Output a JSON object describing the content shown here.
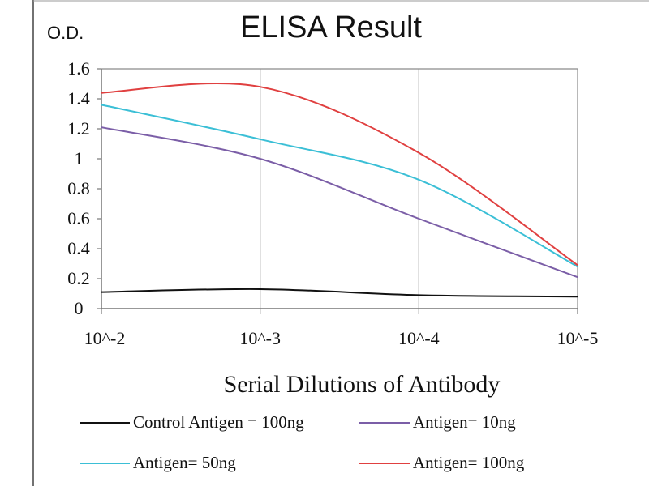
{
  "chart_data": {
    "type": "line",
    "title": "ELISA Result",
    "ylabel": "O.D.",
    "xlabel": "Serial Dilutions  of Antibody",
    "categories": [
      "10^-2",
      "10^-3",
      "10^-4",
      "10^-5"
    ],
    "x_scale": "log",
    "ylim": [
      0,
      1.6
    ],
    "y_ticks": [
      "0",
      "0.2",
      "0.4",
      "0.6",
      "0.8",
      "1",
      "1.2",
      "1.4",
      "1.6"
    ],
    "grid": "vertical",
    "legend_position": "bottom",
    "series": [
      {
        "name": "Control Antigen = 100ng",
        "color": "#111111",
        "values": [
          0.11,
          0.13,
          0.09,
          0.08
        ]
      },
      {
        "name": "Antigen= 10ng",
        "color": "#7b5ea7",
        "values": [
          1.21,
          1.0,
          0.6,
          0.21
        ]
      },
      {
        "name": "Antigen= 50ng",
        "color": "#3bbfd6",
        "values": [
          1.36,
          1.13,
          0.86,
          0.28
        ]
      },
      {
        "name": "Antigen= 100ng",
        "color": "#e04040",
        "values": [
          1.44,
          1.48,
          1.04,
          0.29
        ]
      }
    ]
  }
}
